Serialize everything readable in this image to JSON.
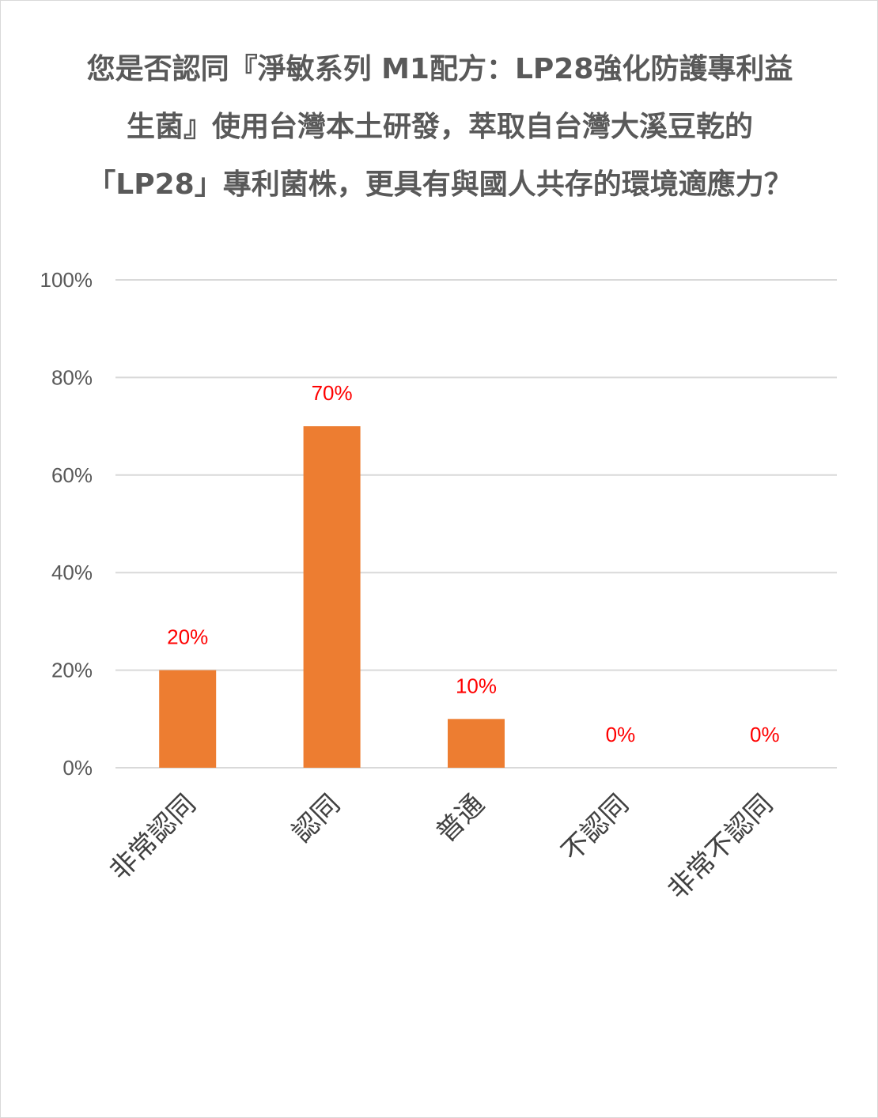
{
  "chart_data": {
    "type": "bar",
    "title": "您是否認同『淨敏系列 M1配方：LP28強化防護專利益生菌』使用台灣本土研發，萃取自台灣大溪豆乾的「LP28」專利菌株，更具有與國人共存的環境適應力？",
    "categories": [
      "非常認同",
      "認同",
      "普通",
      "不認同",
      "非常不認同"
    ],
    "values": [
      20,
      70,
      10,
      0,
      0
    ],
    "data_labels": [
      "20%",
      "70%",
      "10%",
      "0%",
      "0%"
    ],
    "ylim": [
      0,
      100
    ],
    "yticks": [
      0,
      20,
      40,
      60,
      80,
      100
    ],
    "ytick_labels": [
      "0%",
      "20%",
      "40%",
      "60%",
      "80%",
      "100%"
    ],
    "xlabel": "",
    "ylabel": "",
    "grid": true,
    "legend": "none",
    "bar_color": "#ED7D31",
    "label_color": "#FF0000",
    "gridline_color": "#D9D9D9"
  }
}
